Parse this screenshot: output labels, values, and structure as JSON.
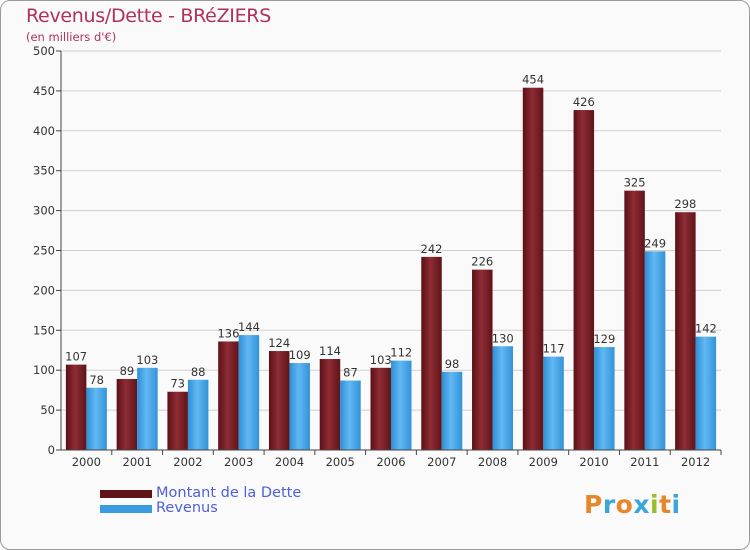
{
  "title": "Revenus/Dette - BRéZIERS",
  "subtitle": "(en milliers d'€)",
  "legend": {
    "debt_label": "Montant de la Dette",
    "revenue_label": "Revenus"
  },
  "logo": {
    "letters": [
      "P",
      "r",
      "o",
      "x",
      "i",
      "t",
      "i"
    ],
    "colors": [
      "#e8862a",
      "#3aa7d8",
      "#e8862a",
      "#3aa7d8",
      "#9bbf2a",
      "#e8862a",
      "#3aa7d8"
    ]
  },
  "colors": {
    "debt": "#7a2028",
    "revenue": "#4aa8ea",
    "title": "#b03060",
    "legend_text": "#4f60d8"
  },
  "chart_data": {
    "type": "bar",
    "categories": [
      "2000",
      "2001",
      "2002",
      "2003",
      "2004",
      "2005",
      "2006",
      "2007",
      "2008",
      "2009",
      "2010",
      "2011",
      "2012"
    ],
    "series": [
      {
        "name": "Montant de la Dette",
        "values": [
          107,
          89,
          73,
          136,
          124,
          114,
          103,
          242,
          226,
          454,
          426,
          325,
          298
        ]
      },
      {
        "name": "Revenus",
        "values": [
          78,
          103,
          88,
          144,
          109,
          87,
          112,
          98,
          130,
          117,
          129,
          249,
          142
        ]
      }
    ],
    "yticks": [
      0,
      50,
      100,
      150,
      200,
      250,
      300,
      350,
      400,
      450,
      500
    ],
    "ylim": [
      0,
      500
    ],
    "grid": true,
    "legend_position": "bottom-left"
  }
}
